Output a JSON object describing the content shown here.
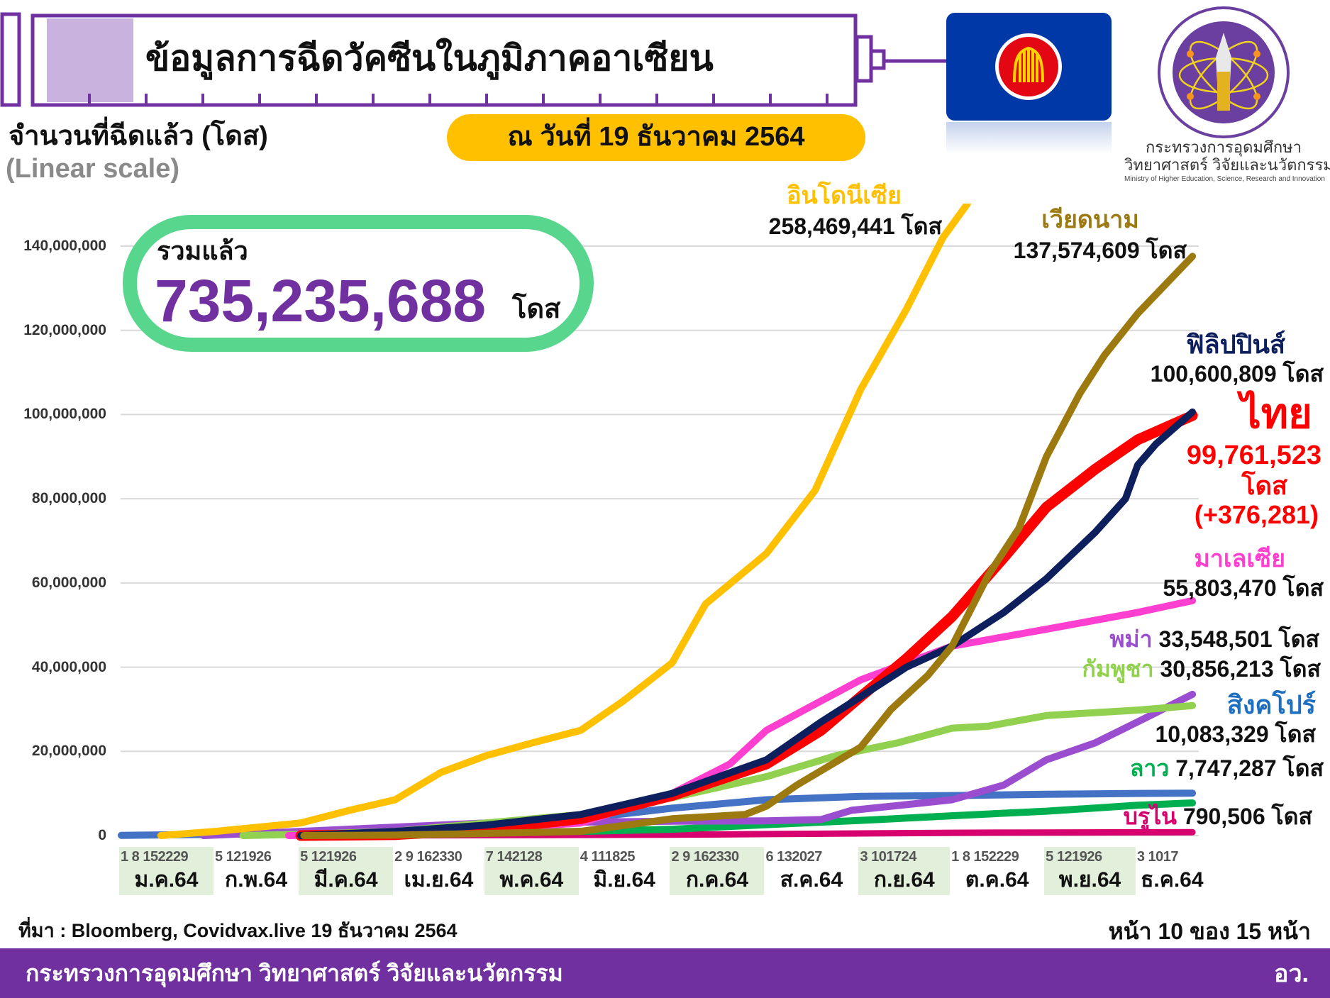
{
  "header": {
    "title": "ข้อมูลการฉีดวัคซีนในภูมิภาคอาเซียน",
    "date": "ณ วันที่ 19 ธันวาคม 2564",
    "ministry_logo_text": [
      "กระทรวงการอุดมศึกษา",
      "วิทยาศาสตร์ วิจัยและนวัตกรรม",
      "Ministry of Higher Education, Science, Research and Innovation"
    ]
  },
  "total": {
    "label": "รวมแล้ว",
    "value": "735,235,688",
    "unit": "โดส"
  },
  "chart_data": {
    "type": "line",
    "title": "ข้อมูลการฉีดวัคซีนในภูมิภาคอาเซียน",
    "ylabel": "จำนวนที่ฉีดแล้ว (โดส)",
    "yscale_note": "(Linear scale)",
    "ylim": [
      0,
      150000000
    ],
    "yticks": [
      0,
      20000000,
      40000000,
      60000000,
      80000000,
      100000000,
      120000000,
      140000000
    ],
    "ytick_labels": [
      "0",
      "20,000,000",
      "40,000,000",
      "60,000,000",
      "80,000,000",
      "100,000,000",
      "120,000,000",
      "140,000,000"
    ],
    "x_unit": "day of year 2021 (0 = 1 Jan 2021)",
    "xlim": [
      0,
      352
    ],
    "months": [
      {
        "label": "ม.ค.64",
        "days": "1  8 152229",
        "start": 0,
        "end": 31,
        "shaded": true
      },
      {
        "label": "ก.พ.64",
        "days": "5 121926",
        "start": 31,
        "end": 59,
        "shaded": false
      },
      {
        "label": "มี.ค.64",
        "days": "5 121926",
        "start": 59,
        "end": 90,
        "shaded": true
      },
      {
        "label": "เม.ย.64",
        "days": "2  9 162330",
        "start": 90,
        "end": 120,
        "shaded": false
      },
      {
        "label": "พ.ค.64",
        "days": "7 142128",
        "start": 120,
        "end": 151,
        "shaded": true
      },
      {
        "label": "มิ.ย.64",
        "days": "4 111825",
        "start": 151,
        "end": 181,
        "shaded": false
      },
      {
        "label": "ก.ค.64",
        "days": "2  9 162330",
        "start": 181,
        "end": 212,
        "shaded": true
      },
      {
        "label": "ส.ค.64",
        "days": "6 132027",
        "start": 212,
        "end": 243,
        "shaded": false
      },
      {
        "label": "ก.ย.64",
        "days": "3 101724",
        "start": 243,
        "end": 273,
        "shaded": true
      },
      {
        "label": "ต.ค.64",
        "days": "1  8 152229",
        "start": 273,
        "end": 304,
        "shaded": false
      },
      {
        "label": "พ.ย.64",
        "days": "5 121926",
        "start": 304,
        "end": 334,
        "shaded": true
      },
      {
        "label": "ธ.ค.64",
        "days": "3 1017",
        "start": 334,
        "end": 358,
        "shaded": false
      }
    ],
    "series": [
      {
        "name": "บรูไน",
        "value_text": "790,506 โดส",
        "color": "#D6006E",
        "width": 9,
        "points": [
          [
            60,
            0
          ],
          [
            120,
            0.1
          ],
          [
            181,
            0.2
          ],
          [
            212,
            0.35
          ],
          [
            243,
            0.5
          ],
          [
            273,
            0.65
          ],
          [
            304,
            0.72
          ],
          [
            334,
            0.77
          ],
          [
            352,
            0.79
          ]
        ]
      },
      {
        "name": "ลาว",
        "value_text": "7,747,287 โดส",
        "color": "#00B050",
        "width": 10,
        "points": [
          [
            60,
            0
          ],
          [
            90,
            0.3
          ],
          [
            120,
            0.7
          ],
          [
            151,
            1.0
          ],
          [
            181,
            1.5
          ],
          [
            212,
            2.6
          ],
          [
            243,
            3.6
          ],
          [
            273,
            4.7
          ],
          [
            304,
            5.8
          ],
          [
            334,
            7.2
          ],
          [
            352,
            7.75
          ]
        ]
      },
      {
        "name": "สิงคโปร์",
        "value_text": "10,083,329 โดส",
        "color": "#4472C4",
        "width": 10,
        "points": [
          [
            0,
            0.05
          ],
          [
            31,
            0.3
          ],
          [
            59,
            0.6
          ],
          [
            90,
            1.5
          ],
          [
            120,
            2.5
          ],
          [
            151,
            4.0
          ],
          [
            181,
            6.5
          ],
          [
            212,
            8.5
          ],
          [
            243,
            9.3
          ],
          [
            273,
            9.5
          ],
          [
            304,
            9.8
          ],
          [
            334,
            10.0
          ],
          [
            352,
            10.08
          ]
        ]
      },
      {
        "name": "พม่า",
        "value_text": "33,548,501 โดส",
        "color": "#9B4DD0",
        "width": 10,
        "points": [
          [
            27,
            0
          ],
          [
            59,
            1.0
          ],
          [
            90,
            2.0
          ],
          [
            120,
            3.0
          ],
          [
            181,
            3.4
          ],
          [
            212,
            3.5
          ],
          [
            230,
            3.8
          ],
          [
            240,
            6
          ],
          [
            260,
            7.5
          ],
          [
            273,
            8.5
          ],
          [
            290,
            12
          ],
          [
            304,
            18
          ],
          [
            320,
            22
          ],
          [
            334,
            27
          ],
          [
            352,
            33.55
          ]
        ]
      },
      {
        "name": "กัมพูชา",
        "value_text": "30,856,213 โดส",
        "color": "#92D050",
        "width": 10,
        "points": [
          [
            40,
            0
          ],
          [
            59,
            0.3
          ],
          [
            90,
            1.0
          ],
          [
            120,
            3.0
          ],
          [
            151,
            5.0
          ],
          [
            181,
            9.0
          ],
          [
            212,
            14.0
          ],
          [
            235,
            19
          ],
          [
            255,
            22
          ],
          [
            273,
            25.5
          ],
          [
            285,
            26
          ],
          [
            304,
            28.5
          ],
          [
            334,
            29.8
          ],
          [
            352,
            30.86
          ]
        ]
      },
      {
        "name": "มาเลเซีย",
        "value_text": "55,803,470 โดส",
        "color": "#FF3FCF",
        "width": 10,
        "points": [
          [
            55,
            0
          ],
          [
            90,
            0.5
          ],
          [
            120,
            1.5
          ],
          [
            151,
            3.0
          ],
          [
            181,
            10.0
          ],
          [
            200,
            17
          ],
          [
            212,
            25.0
          ],
          [
            230,
            32
          ],
          [
            243,
            37.0
          ],
          [
            273,
            45.0
          ],
          [
            304,
            49.0
          ],
          [
            334,
            53.0
          ],
          [
            352,
            55.8
          ]
        ]
      },
      {
        "name": "ไทย",
        "value_text": "99,761,523",
        "unit_text": "โดส",
        "daily_text": "(+376,281)",
        "color": "#FF0000",
        "width": 15,
        "points": [
          [
            59,
            0
          ],
          [
            90,
            0.2
          ],
          [
            120,
            1.5
          ],
          [
            151,
            4.0
          ],
          [
            181,
            9.5
          ],
          [
            212,
            17.0
          ],
          [
            230,
            25
          ],
          [
            243,
            33.0
          ],
          [
            258,
            42
          ],
          [
            273,
            52.0
          ],
          [
            290,
            66
          ],
          [
            304,
            78.0
          ],
          [
            320,
            87
          ],
          [
            334,
            94.0
          ],
          [
            352,
            99.76
          ]
        ]
      },
      {
        "name": "ฟิลิปปินส์",
        "value_text": "100,600,809 โดส",
        "color": "#0D1F5C",
        "width": 10,
        "points": [
          [
            59,
            0
          ],
          [
            90,
            1.0
          ],
          [
            120,
            2.5
          ],
          [
            151,
            5.0
          ],
          [
            181,
            10.0
          ],
          [
            212,
            18.0
          ],
          [
            230,
            27
          ],
          [
            243,
            33.0
          ],
          [
            258,
            40
          ],
          [
            273,
            45.0
          ],
          [
            290,
            53
          ],
          [
            304,
            61.0
          ],
          [
            320,
            72
          ],
          [
            330,
            80
          ],
          [
            334,
            88.0
          ],
          [
            340,
            93
          ],
          [
            352,
            100.6
          ]
        ]
      },
      {
        "name": "เวียดนาม",
        "value_text": "137,574,609 โดส",
        "color": "#9C7A10",
        "width": 10,
        "points": [
          [
            60,
            0
          ],
          [
            90,
            0.1
          ],
          [
            120,
            0.5
          ],
          [
            151,
            1.0
          ],
          [
            181,
            4.0
          ],
          [
            205,
            5
          ],
          [
            212,
            7.0
          ],
          [
            222,
            12
          ],
          [
            243,
            21.0
          ],
          [
            253,
            30
          ],
          [
            265,
            38
          ],
          [
            273,
            45.0
          ],
          [
            285,
            62
          ],
          [
            295,
            73
          ],
          [
            304,
            90.0
          ],
          [
            315,
            105
          ],
          [
            323,
            114
          ],
          [
            334,
            124.0
          ],
          [
            352,
            137.57
          ]
        ]
      },
      {
        "name": "อินโดนีเซีย",
        "value_text": "258,469,441 โดส",
        "color": "#FFC000",
        "width": 10,
        "points": [
          [
            13,
            0
          ],
          [
            31,
            1.0
          ],
          [
            59,
            3.0
          ],
          [
            75,
            6
          ],
          [
            90,
            8.5
          ],
          [
            105,
            15
          ],
          [
            120,
            19.0
          ],
          [
            135,
            22
          ],
          [
            151,
            25.0
          ],
          [
            165,
            32
          ],
          [
            181,
            41.0
          ],
          [
            192,
            55
          ],
          [
            212,
            67.0
          ],
          [
            228,
            82
          ],
          [
            243,
            106.0
          ],
          [
            258,
            125
          ],
          [
            270,
            142
          ],
          [
            278,
            150
          ],
          [
            304,
            200
          ],
          [
            334,
            240
          ],
          [
            352,
            258.47
          ]
        ]
      }
    ]
  },
  "source": "ที่มา : Bloomberg, Covidvax.live 19 ธันวาคม 2564",
  "page_indicator": "หน้า 10 ของ 15 หน้า",
  "footer": {
    "ministry": "กระทรวงการอุดมศึกษา วิทยาศาสตร์ วิจัยและนวัตกรรม",
    "abbr": "อว."
  }
}
